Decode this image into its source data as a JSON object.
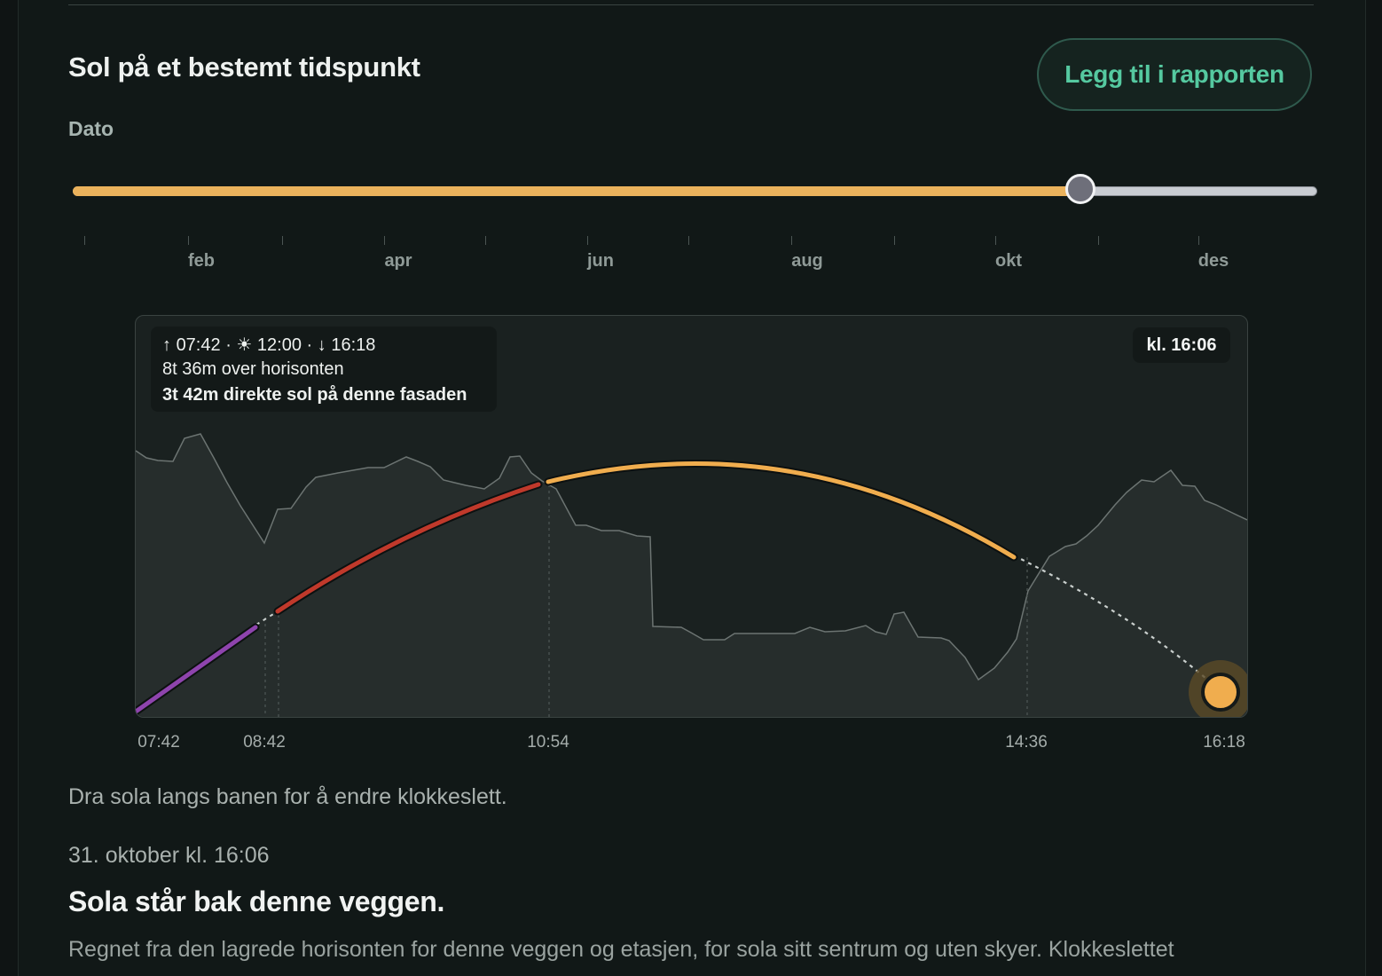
{
  "section": {
    "title": "Sol på et bestemt tidspunkt",
    "add_button_label": "Legg til i rapporten",
    "date_label": "Dato"
  },
  "date_slider": {
    "value_fraction": 0.81,
    "months": [
      "feb",
      "apr",
      "jun",
      "aug",
      "okt",
      "des"
    ]
  },
  "chart": {
    "summary": {
      "sunrise": "07:42",
      "noon": "12:00",
      "sunset": "16:18",
      "line1_sep": "·",
      "over_horizon": "8t 36m over horisonten",
      "direct_sun": "3t 42m direkte sol på denne fasaden"
    },
    "current_time_badge": "kl. 16:06",
    "axis_labels": [
      "07:42",
      "08:42",
      "10:54",
      "14:36",
      "16:18"
    ],
    "colors": {
      "purple": "#8e44ad",
      "red": "#c0392b",
      "sun": "#f0ad4e",
      "horizon_fill": "#262d2c",
      "horizon_line": "#6c7472"
    }
  },
  "texts": {
    "hint": "Dra sola langs banen for å endre klokkeslett.",
    "datetime": "31. oktober kl. 16:06",
    "headline": "Sola står bak denne veggen.",
    "body": "Regnet fra den lagrede horisonten for denne veggen og etasjen, for sola sitt sentrum og uten skyer. Klokkeslettet"
  },
  "icons": {
    "sunrise": "arrow-up-icon",
    "noon": "sun-icon",
    "sunset": "arrow-down-icon"
  }
}
